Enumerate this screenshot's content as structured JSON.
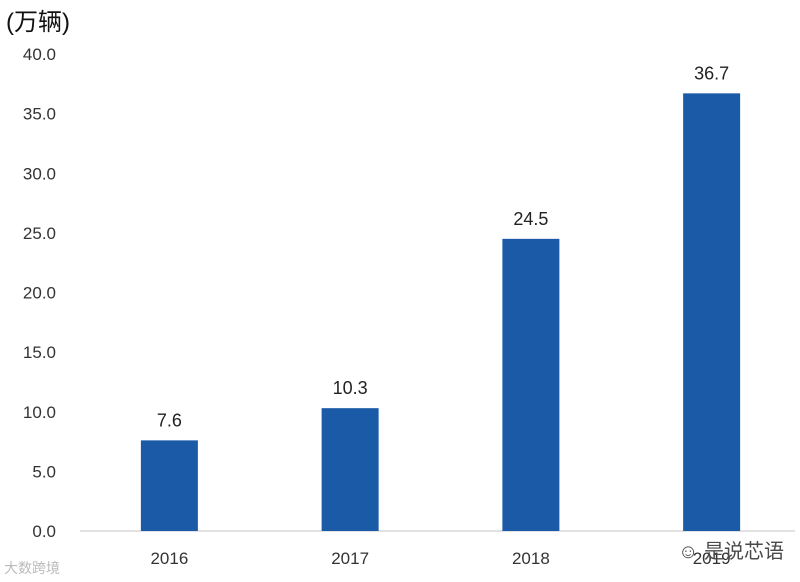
{
  "chart_data": {
    "type": "bar",
    "title": "",
    "ylabel": "(万辆)",
    "xlabel": "",
    "categories": [
      "2016",
      "2017",
      "2018",
      "2019"
    ],
    "values": [
      7.6,
      10.3,
      24.5,
      36.7
    ],
    "data_labels": [
      "7.6",
      "10.3",
      "24.5",
      "36.7"
    ],
    "ylim": [
      0,
      40
    ],
    "y_ticks": [
      "0.0",
      "5.0",
      "10.0",
      "15.0",
      "20.0",
      "25.0",
      "30.0",
      "35.0",
      "40.0"
    ],
    "grid": false,
    "legend": "none",
    "bar_color": "#1a5aa6"
  },
  "watermarks": {
    "right": "是说芯语",
    "left": "大数跨境"
  }
}
